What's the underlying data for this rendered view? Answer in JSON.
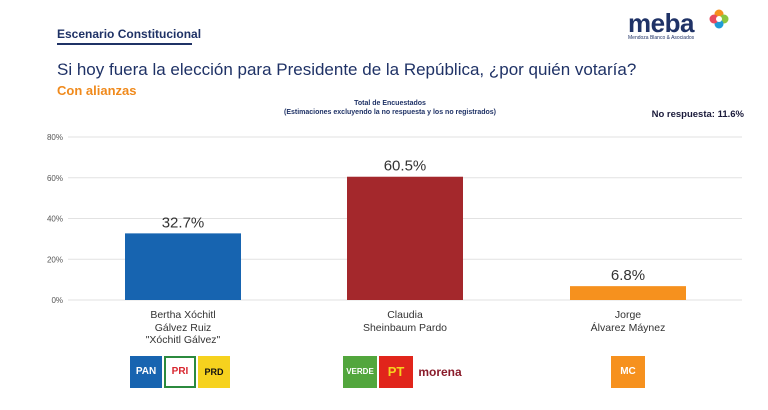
{
  "header": {
    "scenario": "Escenario Constitucional",
    "question": "Si hoy fuera la elección para Presidente de la República, ¿por quién votaría?",
    "subtitle": "Con alianzas",
    "totals_title": "Total de Encuestados",
    "totals_note": "(Estimaciones excluyendo la no respuesta y los no registrados)",
    "no_response": "No respuesta: 11.6%",
    "logo_word": "meba",
    "logo_tagline": "Mendoza Blanco & Asociados"
  },
  "colors": {
    "blue": "#1764b0",
    "red": "#a4282c",
    "orange": "#f6911e",
    "title": "#1f3266",
    "accent": "#f08a1c"
  },
  "chart_data": {
    "type": "bar",
    "categories": [
      "Bertha Xóchitl Gálvez Ruiz \"Xóchitl Gálvez\"",
      "Claudia Sheinbaum Pardo",
      "Jorge Álvarez Máynez"
    ],
    "values": [
      32.7,
      60.5,
      6.8
    ],
    "value_labels": [
      "32.7%",
      "60.5%",
      "6.8%"
    ],
    "bar_colors": [
      "#1764b0",
      "#a4282c",
      "#f6911e"
    ],
    "yticks": [
      "0%",
      "20%",
      "40%",
      "60%",
      "80%"
    ],
    "ylim": [
      0,
      80
    ],
    "grid": true
  },
  "candidates": [
    {
      "lines": [
        "Bertha Xóchitl",
        "Gálvez Ruiz",
        "\"Xóchitl Gálvez\""
      ],
      "parties": [
        "PAN",
        "PRI",
        "PRD"
      ]
    },
    {
      "lines": [
        "Claudia",
        "Sheinbaum Pardo"
      ],
      "parties": [
        "VERDE",
        "PT",
        "morena"
      ]
    },
    {
      "lines": [
        "Jorge",
        "Álvarez Máynez"
      ],
      "parties": [
        "MC"
      ]
    }
  ]
}
